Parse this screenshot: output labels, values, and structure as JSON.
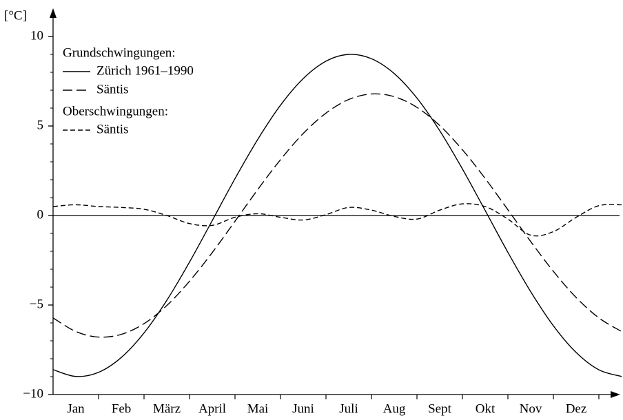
{
  "chart_data": {
    "type": "line",
    "y_label": "[°C]",
    "categories": [
      "Jan",
      "Feb",
      "März",
      "April",
      "Mai",
      "Juni",
      "Juli",
      "Aug",
      "Sept",
      "Okt",
      "Nov",
      "Dez"
    ],
    "x": [
      0,
      0.5,
      1,
      1.5,
      2,
      2.5,
      3,
      3.5,
      4,
      4.5,
      5,
      5.5,
      6,
      6.5,
      7,
      7.5,
      8,
      8.5,
      9,
      9.5,
      10,
      10.5,
      11,
      11.5,
      12,
      12.5
    ],
    "xlim": [
      0,
      12.5
    ],
    "xticks": [
      1,
      2,
      3,
      4,
      5,
      6,
      7,
      8,
      9,
      10,
      11,
      12
    ],
    "ylim": [
      -10,
      10
    ],
    "yticks": [
      {
        "value": -10,
        "label": "−10"
      },
      {
        "value": -5,
        "label": "−5"
      },
      0,
      5,
      10
    ],
    "yticks_minor": [
      -9,
      -8,
      -7,
      -6,
      -4,
      -3,
      -2,
      -1,
      1,
      2,
      3,
      4,
      6,
      7,
      8,
      9
    ],
    "zero_line": true,
    "legend_groups": [
      "Grundschwingungen:",
      "Oberschwingungen:"
    ],
    "series": [
      {
        "name": "Zürich 1961–1990",
        "group": 0,
        "color": "#000000",
        "dash": "solid",
        "values": [
          -8.61,
          -8.99,
          -8.76,
          -7.93,
          -6.56,
          -4.74,
          -2.6,
          -0.28,
          2.06,
          4.25,
          6.16,
          7.65,
          8.62,
          9.0,
          8.76,
          7.93,
          6.56,
          4.74,
          2.6,
          0.28,
          -2.06,
          -4.25,
          -6.16,
          -7.65,
          -8.62,
          -8.99
        ]
      },
      {
        "name": "Säntis",
        "group": 0,
        "color": "#000000",
        "dash": "long",
        "values": [
          -5.72,
          -6.48,
          -6.79,
          -6.64,
          -6.04,
          -5.03,
          -3.67,
          -2.07,
          -0.32,
          1.45,
          3.12,
          4.58,
          5.72,
          6.48,
          6.79,
          6.64,
          6.04,
          5.03,
          3.67,
          2.07,
          0.32,
          -1.45,
          -3.12,
          -4.58,
          -5.72,
          -6.48
        ]
      },
      {
        "name": "Säntis",
        "group": 1,
        "color": "#000000",
        "dash": "short",
        "values": [
          0.5,
          0.6,
          0.5,
          0.45,
          0.35,
          0,
          -0.45,
          -0.55,
          -0.1,
          0.1,
          -0.1,
          -0.25,
          0.05,
          0.45,
          0.3,
          -0.05,
          -0.2,
          0.3,
          0.65,
          0.5,
          -0.2,
          -1.1,
          -0.9,
          -0.1,
          0.55,
          0.6
        ]
      }
    ]
  }
}
